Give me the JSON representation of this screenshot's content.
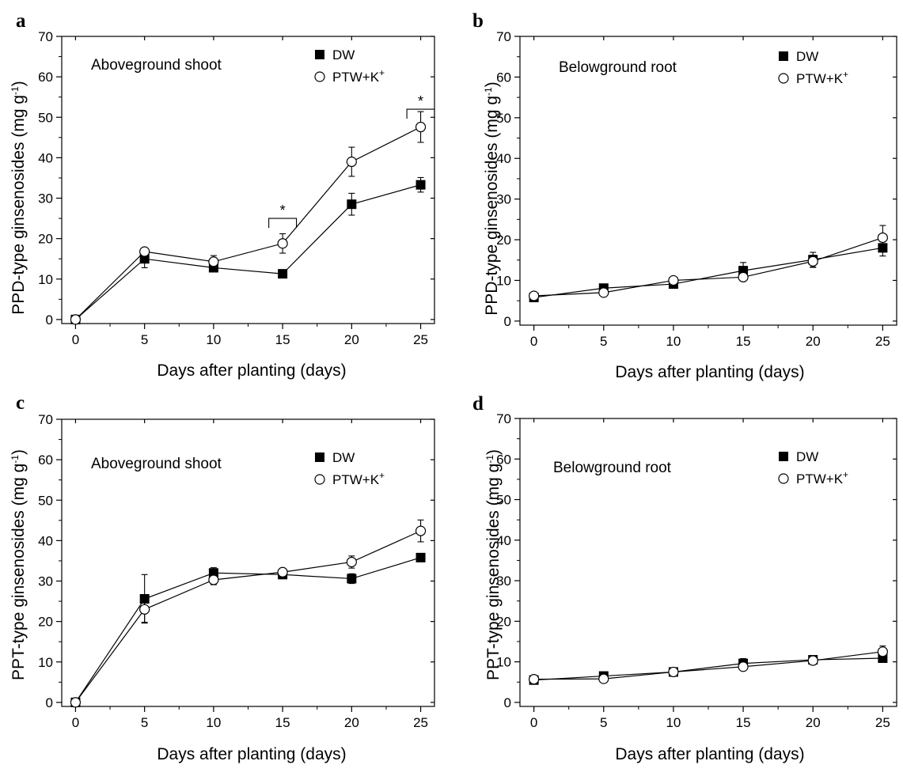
{
  "chart_data": [
    {
      "type": "line",
      "panel_label": "a",
      "title": "Aboveground shoot",
      "xlabel": "Days after planting (days)",
      "ylabel": "PPD-type ginsenosides (mg g",
      "ylabel_sup": "-1",
      "ylabel_end": ")",
      "xlim": [
        -1,
        26
      ],
      "ylim": [
        -1,
        70
      ],
      "xticks": [
        0,
        5,
        10,
        15,
        20,
        25
      ],
      "yticks": [
        0,
        10,
        20,
        30,
        40,
        50,
        60,
        70
      ],
      "xtick_labels": [
        "0",
        "5",
        "10",
        "15",
        "20",
        "25"
      ],
      "ytick_labels": [
        "0",
        "10",
        "20",
        "30",
        "40",
        "50",
        "60",
        "70"
      ],
      "legend_position": "top-right",
      "series": [
        {
          "name": "DW",
          "marker": "filled-square",
          "x": [
            0,
            5,
            10,
            15,
            20,
            25
          ],
          "y": [
            0,
            15,
            12.8,
            11.3,
            28.5,
            33.3
          ],
          "err": [
            0,
            2.2,
            0.6,
            0.5,
            2.7,
            1.8
          ]
        },
        {
          "name": "PTW+K",
          "name_sup": "+",
          "marker": "open-circle",
          "x": [
            0,
            5,
            10,
            15,
            20,
            25
          ],
          "y": [
            0,
            16.8,
            14.3,
            18.8,
            39,
            47.6
          ],
          "err": [
            0,
            0.8,
            1.5,
            2.4,
            3.6,
            3.8
          ]
        }
      ],
      "significance": [
        {
          "label": "*",
          "x_from": 14,
          "x_to": 16,
          "y": 25
        },
        {
          "label": "*",
          "x_from": 24,
          "x_to": 26,
          "y": 52
        }
      ]
    },
    {
      "type": "line",
      "panel_label": "b",
      "title": "Belowground root",
      "xlabel": "Days after planting (days)",
      "ylabel": "PPD-type ginsenosides (mg g",
      "ylabel_sup": "-1",
      "ylabel_end": ")",
      "xlim": [
        -1,
        26
      ],
      "ylim": [
        -1,
        70
      ],
      "xticks": [
        0,
        5,
        10,
        15,
        20,
        25
      ],
      "yticks": [
        0,
        10,
        20,
        30,
        40,
        50,
        60,
        70
      ],
      "xtick_labels": [
        "0",
        "5",
        "10",
        "15",
        "20",
        "25"
      ],
      "ytick_labels": [
        "0",
        "10",
        "20",
        "30",
        "40",
        "50",
        "60",
        "70"
      ],
      "legend_position": "top-right",
      "series": [
        {
          "name": "DW",
          "marker": "filled-square",
          "x": [
            0,
            5,
            10,
            15,
            20,
            25
          ],
          "y": [
            5.8,
            8.1,
            9.1,
            12.4,
            15.1,
            18
          ],
          "err": [
            0.4,
            0.5,
            0.6,
            2,
            1.8,
            2
          ]
        },
        {
          "name": "PTW+K",
          "name_sup": "+",
          "marker": "open-circle",
          "x": [
            0,
            5,
            10,
            15,
            20,
            25
          ],
          "y": [
            6.2,
            7,
            10,
            10.8,
            14.7,
            20.5
          ],
          "err": [
            0.3,
            0.5,
            0.5,
            0.8,
            1.5,
            3
          ]
        }
      ]
    },
    {
      "type": "line",
      "panel_label": "c",
      "title": "Aboveground shoot",
      "xlabel": "Days after planting (days)",
      "ylabel": "PPT-type ginsenosides (mg g",
      "ylabel_sup": "-1",
      "ylabel_end": ")",
      "xlim": [
        -1,
        26
      ],
      "ylim": [
        -1,
        70
      ],
      "xticks": [
        0,
        5,
        10,
        15,
        20,
        25
      ],
      "yticks": [
        0,
        10,
        20,
        30,
        40,
        50,
        60,
        70
      ],
      "xtick_labels": [
        "0",
        "5",
        "10",
        "15",
        "20",
        "25"
      ],
      "ytick_labels": [
        "0",
        "10",
        "20",
        "30",
        "40",
        "50",
        "60",
        "70"
      ],
      "legend_position": "top-right",
      "series": [
        {
          "name": "DW",
          "marker": "filled-square",
          "x": [
            0,
            5,
            10,
            15,
            20,
            25
          ],
          "y": [
            0,
            25.6,
            32,
            31.6,
            30.6,
            35.8
          ],
          "err": [
            0,
            6,
            1.3,
            0.8,
            1.2,
            0.8
          ]
        },
        {
          "name": "PTW+K",
          "name_sup": "+",
          "marker": "open-circle",
          "x": [
            0,
            5,
            10,
            15,
            20,
            25
          ],
          "y": [
            0,
            23,
            30.3,
            32.2,
            34.7,
            42.4
          ],
          "err": [
            0,
            3.2,
            1.2,
            0.6,
            1.5,
            2.7
          ]
        }
      ]
    },
    {
      "type": "line",
      "panel_label": "d",
      "title": "Belowground root",
      "xlabel": "Days after planting (days)",
      "ylabel": "PPT-type ginsenosides (mg g",
      "ylabel_sup": "-1",
      "ylabel_end": ")",
      "xlim": [
        -1,
        26
      ],
      "ylim": [
        -1,
        70
      ],
      "xticks": [
        0,
        5,
        10,
        15,
        20,
        25
      ],
      "yticks": [
        0,
        10,
        20,
        30,
        40,
        50,
        60,
        70
      ],
      "xtick_labels": [
        "0",
        "5",
        "10",
        "15",
        "20",
        "25"
      ],
      "ytick_labels": [
        "0",
        "10",
        "20",
        "30",
        "40",
        "50",
        "60",
        "70"
      ],
      "legend_position": "top-right",
      "series": [
        {
          "name": "DW",
          "marker": "filled-square",
          "x": [
            0,
            5,
            10,
            15,
            20,
            25
          ],
          "y": [
            5.5,
            6.5,
            7.5,
            9.6,
            10.5,
            10.9
          ],
          "err": [
            0.3,
            0.4,
            0.5,
            1.2,
            0.8,
            1
          ]
        },
        {
          "name": "PTW+K",
          "name_sup": "+",
          "marker": "open-circle",
          "x": [
            0,
            5,
            10,
            15,
            20,
            25
          ],
          "y": [
            5.7,
            5.8,
            7.5,
            8.8,
            10.3,
            12.5
          ],
          "err": [
            0.3,
            0.3,
            0.4,
            0.6,
            0.5,
            1.4
          ]
        }
      ]
    }
  ]
}
